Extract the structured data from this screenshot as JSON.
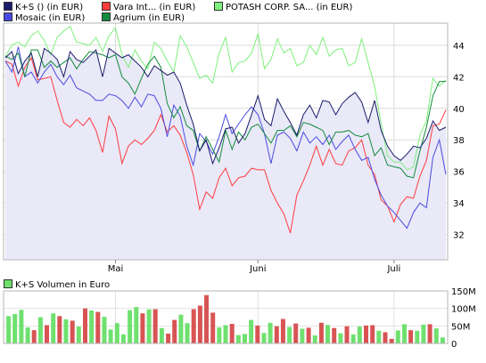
{
  "chart_data": [
    {
      "type": "line",
      "legend": [
        {
          "label": "K+S () (in EUR)",
          "color": "#1b1b6b"
        },
        {
          "label": "Vara Int... (in EUR)",
          "color": "#ff3b3b"
        },
        {
          "label": "POTASH CORP. SA... (in EUR)",
          "color": "#7cf07c"
        },
        {
          "label": "Mosaic (in EUR)",
          "color": "#4a4ae0"
        },
        {
          "label": "Agrium (in EUR)",
          "color": "#138a3c"
        }
      ],
      "x_ticks": [
        {
          "label": "Mai",
          "index": 17
        },
        {
          "label": "Juni",
          "index": 39
        },
        {
          "label": "Juli",
          "index": 60
        }
      ],
      "y_ticks": [
        32,
        34,
        36,
        38,
        40,
        42,
        44
      ],
      "ylim": [
        30.4,
        45.4
      ],
      "grid": true,
      "series": [
        {
          "name": "K+S () (in EUR)",
          "color": "#1b1b6b",
          "fill": true,
          "values": [
            43.2,
            43.6,
            42.2,
            43.0,
            43.5,
            42.0,
            43.8,
            43.5,
            43.1,
            42.0,
            43.6,
            43.1,
            42.9,
            43.3,
            43.7,
            42.0,
            43.8,
            43.5,
            43.2,
            43.4,
            43.0,
            42.6,
            42.0,
            42.7,
            42.4,
            42.1,
            42.3,
            41.6,
            40.2,
            39.0,
            37.3,
            38.0,
            36.5,
            37.5,
            38.7,
            38.8,
            37.8,
            38.4,
            39.6,
            40.8,
            39.3,
            38.9,
            40.6,
            39.8,
            39.1,
            38.3,
            39.6,
            40.2,
            39.4,
            40.5,
            40.4,
            39.6,
            40.3,
            40.7,
            41.0,
            40.4,
            39.1,
            40.5,
            38.6,
            37.6,
            37.0,
            36.7,
            37.1,
            37.6,
            37.5,
            38.1,
            39.2,
            38.6,
            38.8
          ]
        },
        {
          "name": "Vara Int... (in EUR)",
          "color": "#ff3b3b",
          "values": [
            43.0,
            42.8,
            41.4,
            42.6,
            43.2,
            41.8,
            41.9,
            42.0,
            40.5,
            39.1,
            38.8,
            39.3,
            38.9,
            39.4,
            38.6,
            37.2,
            39.5,
            38.7,
            36.5,
            37.6,
            38.0,
            37.7,
            38.1,
            38.6,
            39.6,
            38.5,
            38.9,
            38.3,
            37.2,
            35.8,
            33.6,
            34.7,
            34.3,
            35.6,
            36.2,
            35.1,
            35.6,
            35.7,
            36.2,
            36.1,
            36.1,
            34.8,
            34.0,
            33.3,
            32.1,
            34.5,
            35.4,
            36.4,
            37.6,
            36.4,
            37.4,
            36.5,
            36.4,
            37.3,
            37.5,
            38.0,
            36.4,
            35.8,
            34.2,
            33.8,
            32.8,
            33.9,
            34.4,
            34.3,
            35.7,
            36.7,
            38.9,
            39.0,
            39.9
          ]
        },
        {
          "name": "POTASH CORP. SA... (in EUR)",
          "color": "#7cf07c",
          "values": [
            43.3,
            44.0,
            44.2,
            43.9,
            44.6,
            44.9,
            44.3,
            43.4,
            44.5,
            44.9,
            45.2,
            44.2,
            44.1,
            44.0,
            44.5,
            43.6,
            44.6,
            45.1,
            43.4,
            42.6,
            43.7,
            43.0,
            42.5,
            44.2,
            43.8,
            43.0,
            42.3,
            44.6,
            43.9,
            42.9,
            41.9,
            42.1,
            41.6,
            43.5,
            44.5,
            42.3,
            42.9,
            43.0,
            43.5,
            44.7,
            42.5,
            43.1,
            44.4,
            43.5,
            43.8,
            42.7,
            42.9,
            44.0,
            43.4,
            44.5,
            43.3,
            43.7,
            43.8,
            42.7,
            42.9,
            44.4,
            42.9,
            41.4,
            39.0,
            37.0,
            36.6,
            36.6,
            36.1,
            36.3,
            38.3,
            39.2,
            41.9,
            41.4,
            41.8
          ]
        },
        {
          "name": "Mosaic (in EUR)",
          "color": "#4a4ae0",
          "values": [
            43.0,
            42.3,
            43.9,
            42.0,
            42.3,
            41.6,
            42.3,
            42.8,
            42.0,
            41.5,
            42.1,
            41.3,
            41.1,
            40.9,
            40.5,
            40.5,
            40.9,
            40.8,
            40.5,
            40.0,
            40.7,
            40.1,
            40.9,
            40.8,
            40.0,
            38.2,
            40.2,
            39.5,
            37.6,
            36.4,
            38.4,
            37.9,
            37.1,
            38.2,
            39.6,
            38.4,
            39.0,
            39.6,
            40.1,
            39.6,
            38.4,
            36.5,
            38.3,
            38.5,
            38.1,
            37.3,
            38.5,
            37.8,
            38.2,
            37.7,
            38.3,
            37.4,
            37.9,
            38.3,
            37.4,
            36.7,
            36.9,
            35.5,
            34.5,
            33.8,
            33.4,
            32.9,
            32.4,
            33.4,
            34.0,
            33.7,
            36.9,
            38.0,
            35.8
          ]
        },
        {
          "name": "Agrium (in EUR)",
          "color": "#138a3c",
          "values": [
            43.3,
            43.1,
            43.5,
            42.0,
            43.7,
            43.7,
            42.6,
            43.0,
            42.6,
            42.9,
            43.2,
            42.5,
            43.1,
            43.6,
            43.5,
            43.4,
            43.2,
            43.4,
            42.0,
            41.6,
            40.9,
            41.9,
            42.8,
            43.3,
            42.6,
            40.3,
            39.4,
            40.1,
            38.9,
            38.6,
            37.3,
            38.2,
            37.4,
            36.6,
            38.6,
            37.4,
            38.5,
            38.0,
            38.8,
            39.0,
            38.4,
            37.8,
            38.6,
            38.6,
            38.9,
            38.2,
            39.1,
            39.0,
            38.8,
            38.6,
            37.7,
            38.5,
            38.5,
            38.6,
            38.3,
            38.2,
            38.4,
            37.0,
            37.5,
            36.4,
            36.3,
            36.2,
            35.7,
            35.6,
            37.3,
            38.8,
            40.8,
            41.7,
            41.7
          ]
        }
      ]
    },
    {
      "type": "bar",
      "legend": [
        {
          "label": "K+S Volumen in Euro",
          "color": "#6fe06f"
        }
      ],
      "y_ticks": [
        {
          "label": "0",
          "value": 0
        },
        {
          "label": "50M",
          "value": 50
        },
        {
          "label": "100M",
          "value": 100
        },
        {
          "label": "150M",
          "value": 150
        }
      ],
      "ylim": [
        0,
        150
      ],
      "unit": "M EUR",
      "up_color": "#6fe06f",
      "down_color": "#d85454",
      "values": [
        78,
        84,
        96,
        46,
        38,
        75,
        52,
        86,
        78,
        69,
        65,
        48,
        100,
        94,
        90,
        76,
        40,
        58,
        26,
        95,
        104,
        86,
        97,
        98,
        44,
        28,
        67,
        82,
        58,
        98,
        108,
        138,
        88,
        46,
        52,
        56,
        24,
        27,
        67,
        51,
        30,
        59,
        49,
        70,
        47,
        57,
        42,
        45,
        23,
        59,
        53,
        44,
        29,
        49,
        26,
        48,
        51,
        52,
        36,
        32,
        13,
        37,
        55,
        38,
        36,
        54,
        55,
        43,
        17
      ],
      "up": [
        1,
        1,
        1,
        1,
        0,
        1,
        0,
        1,
        0,
        1,
        0,
        1,
        0,
        1,
        0,
        1,
        1,
        1,
        1,
        1,
        1,
        0,
        1,
        0,
        1,
        0,
        0,
        1,
        1,
        0,
        0,
        0,
        0,
        1,
        1,
        0,
        1,
        1,
        1,
        0,
        1,
        1,
        0,
        0,
        1,
        0,
        1,
        0,
        1,
        0,
        1,
        0,
        1,
        0,
        1,
        1,
        0,
        0,
        1,
        0,
        0,
        1,
        1,
        0,
        1,
        1,
        0,
        1,
        1
      ]
    }
  ]
}
